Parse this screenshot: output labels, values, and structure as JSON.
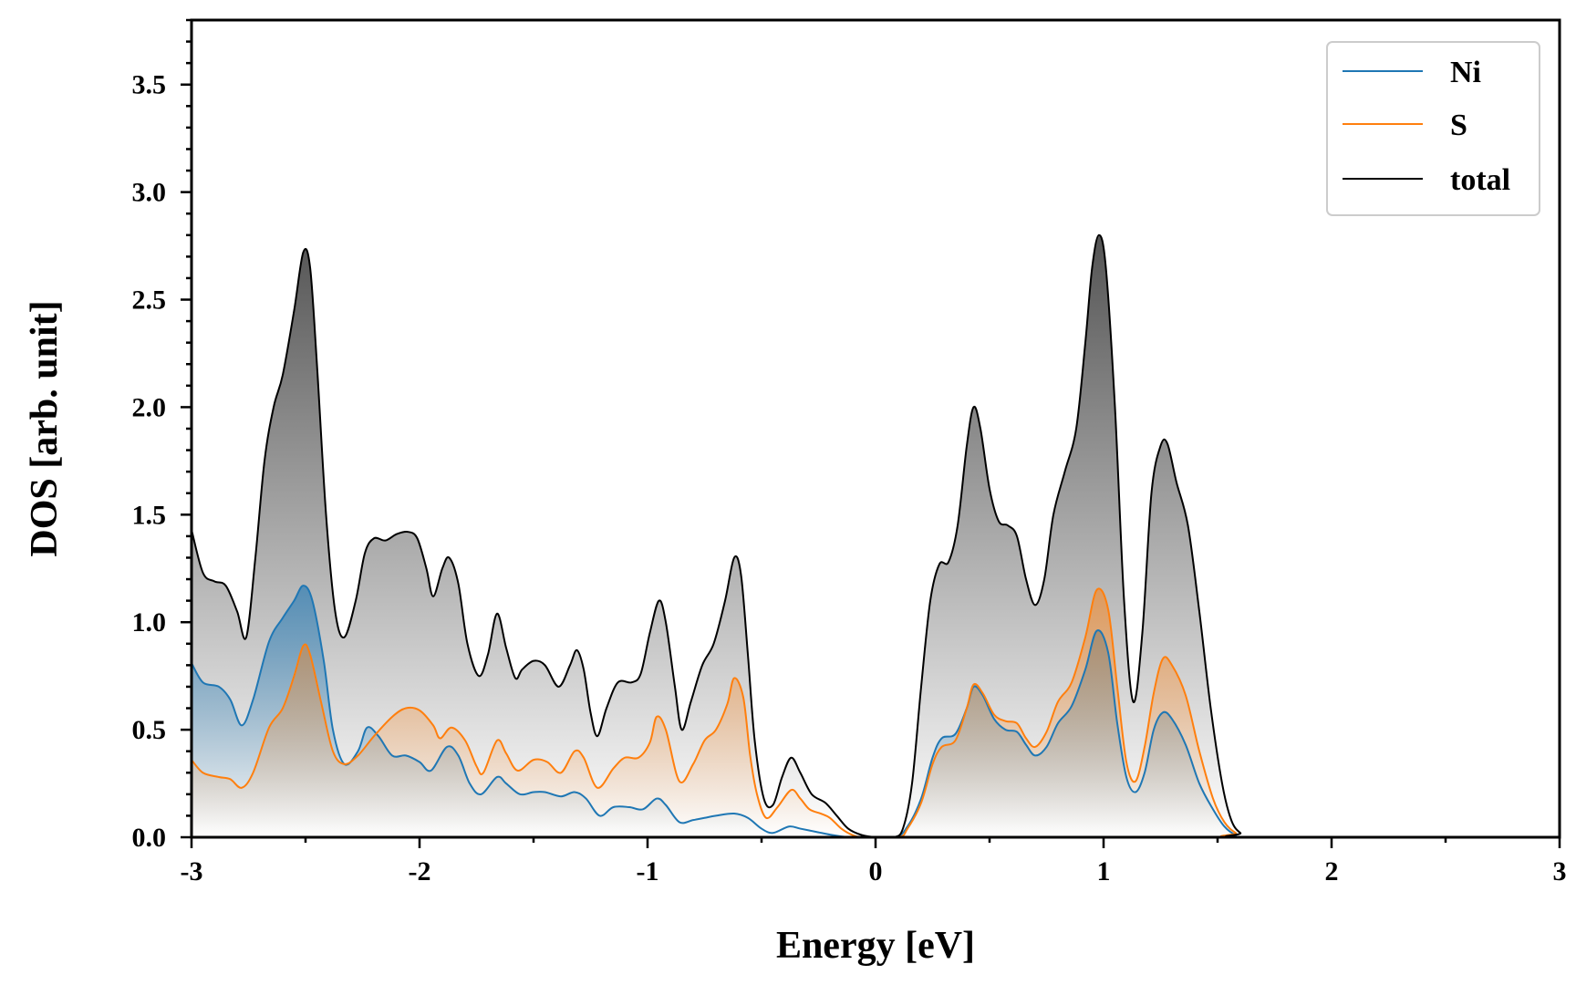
{
  "chart_data": {
    "type": "area",
    "title": "",
    "xlabel": "Energy [eV]",
    "ylabel": "DOS [arb. unit]",
    "xlim": [
      -3,
      3
    ],
    "ylim": [
      0,
      3.8
    ],
    "xticks": [
      -3,
      -2,
      -1,
      0,
      1,
      2,
      3
    ],
    "xtick_labels": [
      "-3",
      "-2",
      "-1",
      "0",
      "1",
      "2",
      "3"
    ],
    "yticks": [
      0,
      0.5,
      1.0,
      1.5,
      2.0,
      2.5,
      3.0,
      3.5
    ],
    "ytick_labels": [
      "0.0",
      "0.5",
      "1.0",
      "1.5",
      "2.0",
      "2.5",
      "3.0",
      "3.5"
    ],
    "legend_position": "top-right",
    "series": [
      {
        "name": "Ni",
        "color": "#1f77b4",
        "points": [
          [
            -3.0,
            0.81
          ],
          [
            -2.95,
            0.72
          ],
          [
            -2.88,
            0.7
          ],
          [
            -2.83,
            0.64
          ],
          [
            -2.78,
            0.52
          ],
          [
            -2.73,
            0.64
          ],
          [
            -2.66,
            0.91
          ],
          [
            -2.6,
            1.02
          ],
          [
            -2.55,
            1.1
          ],
          [
            -2.51,
            1.17
          ],
          [
            -2.47,
            1.1
          ],
          [
            -2.42,
            0.82
          ],
          [
            -2.38,
            0.5
          ],
          [
            -2.33,
            0.34
          ],
          [
            -2.27,
            0.4
          ],
          [
            -2.23,
            0.51
          ],
          [
            -2.18,
            0.47
          ],
          [
            -2.12,
            0.38
          ],
          [
            -2.06,
            0.38
          ],
          [
            -2.0,
            0.35
          ],
          [
            -1.95,
            0.31
          ],
          [
            -1.88,
            0.42
          ],
          [
            -1.83,
            0.38
          ],
          [
            -1.78,
            0.25
          ],
          [
            -1.73,
            0.2
          ],
          [
            -1.66,
            0.28
          ],
          [
            -1.62,
            0.25
          ],
          [
            -1.56,
            0.2
          ],
          [
            -1.5,
            0.21
          ],
          [
            -1.45,
            0.21
          ],
          [
            -1.38,
            0.19
          ],
          [
            -1.32,
            0.21
          ],
          [
            -1.27,
            0.18
          ],
          [
            -1.21,
            0.1
          ],
          [
            -1.15,
            0.14
          ],
          [
            -1.08,
            0.14
          ],
          [
            -1.02,
            0.13
          ],
          [
            -0.96,
            0.18
          ],
          [
            -0.92,
            0.15
          ],
          [
            -0.86,
            0.07
          ],
          [
            -0.8,
            0.08
          ],
          [
            -0.75,
            0.09
          ],
          [
            -0.7,
            0.1
          ],
          [
            -0.62,
            0.11
          ],
          [
            -0.56,
            0.09
          ],
          [
            -0.5,
            0.04
          ],
          [
            -0.45,
            0.02
          ],
          [
            -0.38,
            0.05
          ],
          [
            -0.33,
            0.04
          ],
          [
            -0.26,
            0.025
          ],
          [
            -0.2,
            0.012
          ],
          [
            -0.15,
            0.004
          ],
          [
            -0.1,
            0.0
          ],
          [
            0.08,
            0.0
          ],
          [
            0.14,
            0.05
          ],
          [
            0.2,
            0.18
          ],
          [
            0.25,
            0.37
          ],
          [
            0.29,
            0.46
          ],
          [
            0.35,
            0.48
          ],
          [
            0.4,
            0.6
          ],
          [
            0.43,
            0.7
          ],
          [
            0.47,
            0.66
          ],
          [
            0.52,
            0.55
          ],
          [
            0.57,
            0.5
          ],
          [
            0.62,
            0.49
          ],
          [
            0.66,
            0.43
          ],
          [
            0.7,
            0.38
          ],
          [
            0.75,
            0.42
          ],
          [
            0.8,
            0.53
          ],
          [
            0.86,
            0.61
          ],
          [
            0.92,
            0.78
          ],
          [
            0.97,
            0.96
          ],
          [
            1.02,
            0.86
          ],
          [
            1.06,
            0.53
          ],
          [
            1.1,
            0.28
          ],
          [
            1.14,
            0.21
          ],
          [
            1.18,
            0.3
          ],
          [
            1.22,
            0.5
          ],
          [
            1.26,
            0.58
          ],
          [
            1.3,
            0.55
          ],
          [
            1.36,
            0.43
          ],
          [
            1.42,
            0.25
          ],
          [
            1.48,
            0.13
          ],
          [
            1.53,
            0.05
          ],
          [
            1.58,
            0.01
          ],
          [
            1.63,
            0.0
          ],
          [
            3.0,
            0.0
          ]
        ]
      },
      {
        "name": "S",
        "color": "#ff7f0e",
        "points": [
          [
            -3.0,
            0.36
          ],
          [
            -2.95,
            0.3
          ],
          [
            -2.88,
            0.28
          ],
          [
            -2.83,
            0.27
          ],
          [
            -2.78,
            0.23
          ],
          [
            -2.73,
            0.3
          ],
          [
            -2.66,
            0.51
          ],
          [
            -2.6,
            0.6
          ],
          [
            -2.55,
            0.75
          ],
          [
            -2.51,
            0.89
          ],
          [
            -2.48,
            0.85
          ],
          [
            -2.43,
            0.62
          ],
          [
            -2.38,
            0.4
          ],
          [
            -2.33,
            0.34
          ],
          [
            -2.27,
            0.38
          ],
          [
            -2.2,
            0.47
          ],
          [
            -2.12,
            0.56
          ],
          [
            -2.06,
            0.6
          ],
          [
            -2.0,
            0.59
          ],
          [
            -1.94,
            0.52
          ],
          [
            -1.91,
            0.46
          ],
          [
            -1.86,
            0.51
          ],
          [
            -1.8,
            0.45
          ],
          [
            -1.75,
            0.33
          ],
          [
            -1.72,
            0.3
          ],
          [
            -1.66,
            0.45
          ],
          [
            -1.62,
            0.39
          ],
          [
            -1.57,
            0.31
          ],
          [
            -1.5,
            0.36
          ],
          [
            -1.44,
            0.35
          ],
          [
            -1.38,
            0.3
          ],
          [
            -1.32,
            0.4
          ],
          [
            -1.28,
            0.37
          ],
          [
            -1.22,
            0.23
          ],
          [
            -1.15,
            0.32
          ],
          [
            -1.1,
            0.37
          ],
          [
            -1.04,
            0.37
          ],
          [
            -0.99,
            0.44
          ],
          [
            -0.96,
            0.56
          ],
          [
            -0.92,
            0.5
          ],
          [
            -0.86,
            0.26
          ],
          [
            -0.8,
            0.34
          ],
          [
            -0.75,
            0.45
          ],
          [
            -0.7,
            0.5
          ],
          [
            -0.65,
            0.62
          ],
          [
            -0.62,
            0.74
          ],
          [
            -0.58,
            0.65
          ],
          [
            -0.55,
            0.38
          ],
          [
            -0.52,
            0.2
          ],
          [
            -0.48,
            0.09
          ],
          [
            -0.43,
            0.14
          ],
          [
            -0.37,
            0.22
          ],
          [
            -0.33,
            0.18
          ],
          [
            -0.29,
            0.13
          ],
          [
            -0.24,
            0.11
          ],
          [
            -0.2,
            0.09
          ],
          [
            -0.15,
            0.04
          ],
          [
            -0.1,
            0.01
          ],
          [
            -0.05,
            0.0
          ],
          [
            0.1,
            0.0
          ],
          [
            0.14,
            0.04
          ],
          [
            0.2,
            0.16
          ],
          [
            0.25,
            0.34
          ],
          [
            0.29,
            0.42
          ],
          [
            0.35,
            0.45
          ],
          [
            0.4,
            0.6
          ],
          [
            0.43,
            0.71
          ],
          [
            0.47,
            0.67
          ],
          [
            0.52,
            0.57
          ],
          [
            0.57,
            0.54
          ],
          [
            0.62,
            0.53
          ],
          [
            0.66,
            0.46
          ],
          [
            0.7,
            0.42
          ],
          [
            0.75,
            0.49
          ],
          [
            0.8,
            0.63
          ],
          [
            0.86,
            0.72
          ],
          [
            0.92,
            0.93
          ],
          [
            0.97,
            1.15
          ],
          [
            1.02,
            1.06
          ],
          [
            1.06,
            0.7
          ],
          [
            1.1,
            0.35
          ],
          [
            1.14,
            0.26
          ],
          [
            1.18,
            0.42
          ],
          [
            1.22,
            0.67
          ],
          [
            1.26,
            0.83
          ],
          [
            1.3,
            0.8
          ],
          [
            1.36,
            0.66
          ],
          [
            1.42,
            0.4
          ],
          [
            1.48,
            0.18
          ],
          [
            1.53,
            0.07
          ],
          [
            1.58,
            0.02
          ],
          [
            1.63,
            0.0
          ],
          [
            3.0,
            0.0
          ]
        ]
      },
      {
        "name": "total",
        "color": "#000000",
        "points": [
          [
            -3.0,
            1.43
          ],
          [
            -2.95,
            1.23
          ],
          [
            -2.9,
            1.19
          ],
          [
            -2.85,
            1.17
          ],
          [
            -2.8,
            1.05
          ],
          [
            -2.76,
            0.93
          ],
          [
            -2.72,
            1.3
          ],
          [
            -2.68,
            1.75
          ],
          [
            -2.64,
            2.0
          ],
          [
            -2.6,
            2.15
          ],
          [
            -2.55,
            2.45
          ],
          [
            -2.51,
            2.72
          ],
          [
            -2.48,
            2.65
          ],
          [
            -2.45,
            2.2
          ],
          [
            -2.41,
            1.5
          ],
          [
            -2.37,
            1.05
          ],
          [
            -2.33,
            0.93
          ],
          [
            -2.28,
            1.1
          ],
          [
            -2.24,
            1.32
          ],
          [
            -2.2,
            1.39
          ],
          [
            -2.15,
            1.38
          ],
          [
            -2.1,
            1.41
          ],
          [
            -2.05,
            1.42
          ],
          [
            -2.01,
            1.39
          ],
          [
            -1.97,
            1.25
          ],
          [
            -1.94,
            1.12
          ],
          [
            -1.9,
            1.25
          ],
          [
            -1.87,
            1.3
          ],
          [
            -1.83,
            1.18
          ],
          [
            -1.79,
            0.9
          ],
          [
            -1.74,
            0.75
          ],
          [
            -1.7,
            0.85
          ],
          [
            -1.66,
            1.04
          ],
          [
            -1.62,
            0.88
          ],
          [
            -1.58,
            0.74
          ],
          [
            -1.55,
            0.78
          ],
          [
            -1.5,
            0.82
          ],
          [
            -1.45,
            0.8
          ],
          [
            -1.39,
            0.7
          ],
          [
            -1.34,
            0.8
          ],
          [
            -1.31,
            0.87
          ],
          [
            -1.28,
            0.78
          ],
          [
            -1.25,
            0.58
          ],
          [
            -1.22,
            0.47
          ],
          [
            -1.18,
            0.6
          ],
          [
            -1.13,
            0.72
          ],
          [
            -1.07,
            0.72
          ],
          [
            -1.03,
            0.76
          ],
          [
            -0.99,
            0.95
          ],
          [
            -0.95,
            1.1
          ],
          [
            -0.92,
            1.0
          ],
          [
            -0.88,
            0.7
          ],
          [
            -0.85,
            0.5
          ],
          [
            -0.81,
            0.63
          ],
          [
            -0.76,
            0.8
          ],
          [
            -0.71,
            0.9
          ],
          [
            -0.66,
            1.1
          ],
          [
            -0.62,
            1.3
          ],
          [
            -0.59,
            1.22
          ],
          [
            -0.56,
            0.85
          ],
          [
            -0.53,
            0.45
          ],
          [
            -0.49,
            0.18
          ],
          [
            -0.45,
            0.15
          ],
          [
            -0.41,
            0.28
          ],
          [
            -0.37,
            0.37
          ],
          [
            -0.33,
            0.3
          ],
          [
            -0.28,
            0.2
          ],
          [
            -0.22,
            0.16
          ],
          [
            -0.17,
            0.1
          ],
          [
            -0.12,
            0.04
          ],
          [
            -0.06,
            0.01
          ],
          [
            0.0,
            0.0
          ],
          [
            0.08,
            0.0
          ],
          [
            0.12,
            0.04
          ],
          [
            0.16,
            0.25
          ],
          [
            0.2,
            0.7
          ],
          [
            0.24,
            1.1
          ],
          [
            0.28,
            1.27
          ],
          [
            0.32,
            1.28
          ],
          [
            0.36,
            1.45
          ],
          [
            0.4,
            1.82
          ],
          [
            0.43,
            2.0
          ],
          [
            0.46,
            1.9
          ],
          [
            0.5,
            1.62
          ],
          [
            0.54,
            1.47
          ],
          [
            0.58,
            1.45
          ],
          [
            0.62,
            1.4
          ],
          [
            0.66,
            1.2
          ],
          [
            0.7,
            1.08
          ],
          [
            0.74,
            1.2
          ],
          [
            0.78,
            1.5
          ],
          [
            0.83,
            1.7
          ],
          [
            0.88,
            1.9
          ],
          [
            0.92,
            2.3
          ],
          [
            0.95,
            2.65
          ],
          [
            0.98,
            2.8
          ],
          [
            1.01,
            2.65
          ],
          [
            1.05,
            2.0
          ],
          [
            1.09,
            1.1
          ],
          [
            1.13,
            0.63
          ],
          [
            1.17,
            0.95
          ],
          [
            1.21,
            1.6
          ],
          [
            1.25,
            1.82
          ],
          [
            1.28,
            1.83
          ],
          [
            1.32,
            1.65
          ],
          [
            1.37,
            1.45
          ],
          [
            1.42,
            1.05
          ],
          [
            1.47,
            0.6
          ],
          [
            1.52,
            0.25
          ],
          [
            1.56,
            0.08
          ],
          [
            1.6,
            0.02
          ],
          [
            1.65,
            0.0
          ],
          [
            3.0,
            0.0
          ]
        ]
      }
    ]
  }
}
